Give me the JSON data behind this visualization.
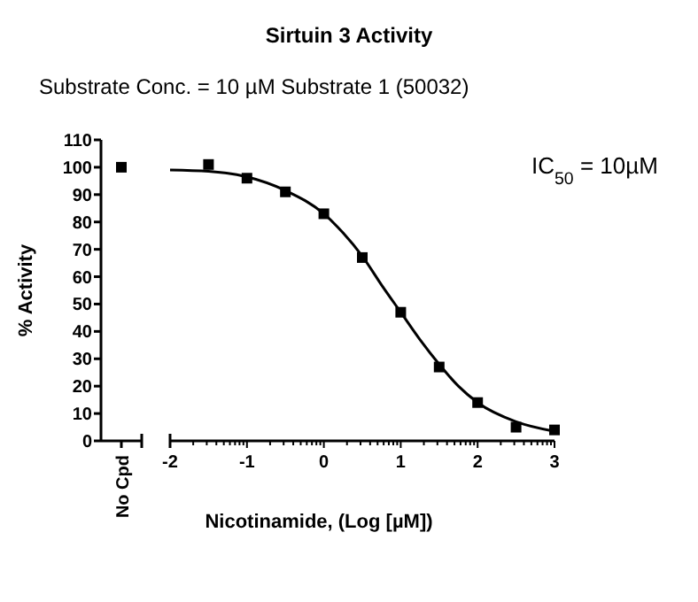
{
  "chart_data": [
    {
      "type": "scatter",
      "ylabel": "% Activity",
      "categories": [
        "No Cpd"
      ],
      "ylim": [
        0,
        110
      ],
      "yticks": [
        0,
        10,
        20,
        30,
        40,
        50,
        60,
        70,
        80,
        90,
        100,
        110
      ],
      "marker": "square",
      "series": [
        {
          "color": "#000000",
          "values": [
            100
          ]
        }
      ]
    },
    {
      "type": "scatter",
      "title": "Sirtuin 3 Activity",
      "subtitle": "Substrate Conc. = 10 µM Substrate 1 (50032)",
      "xlabel": "Nicotinamide, (Log [µM])",
      "annotations": [
        "IC$_{50}$ = 10µM"
      ],
      "xlim": [
        -2,
        3
      ],
      "ylim": [
        0,
        110
      ],
      "tick_labels": "x",
      "marker": "square",
      "xticks": [
        -2,
        {
          "value": -1.699,
          "label": null
        },
        {
          "value": -1.523,
          "label": null
        },
        {
          "value": -1.398,
          "label": null
        },
        {
          "value": -1.301,
          "label": null
        },
        {
          "value": -1.222,
          "label": null
        },
        {
          "value": -1.155,
          "label": null
        },
        {
          "value": -1.097,
          "label": null
        },
        {
          "value": -1.046,
          "label": null
        },
        -1,
        {
          "value": -0.699,
          "label": null
        },
        {
          "value": -0.523,
          "label": null
        },
        {
          "value": -0.398,
          "label": null
        },
        {
          "value": -0.301,
          "label": null
        },
        {
          "value": -0.222,
          "label": null
        },
        {
          "value": -0.155,
          "label": null
        },
        {
          "value": -0.097,
          "label": null
        },
        {
          "value": -0.046,
          "label": null
        },
        0,
        {
          "value": 0.301,
          "label": null
        },
        {
          "value": 0.477,
          "label": null
        },
        {
          "value": 0.602,
          "label": null
        },
        {
          "value": 0.699,
          "label": null
        },
        {
          "value": 0.778,
          "label": null
        },
        {
          "value": 0.845,
          "label": null
        },
        {
          "value": 0.903,
          "label": null
        },
        {
          "value": 0.954,
          "label": null
        },
        1,
        {
          "value": 1.301,
          "label": null
        },
        {
          "value": 1.477,
          "label": null
        },
        {
          "value": 1.602,
          "label": null
        },
        {
          "value": 1.699,
          "label": null
        },
        {
          "value": 1.778,
          "label": null
        },
        {
          "value": 1.845,
          "label": null
        },
        {
          "value": 1.903,
          "label": null
        },
        {
          "value": 1.954,
          "label": null
        },
        2,
        {
          "value": 2.301,
          "label": null
        },
        {
          "value": 2.477,
          "label": null
        },
        {
          "value": 2.602,
          "label": null
        },
        {
          "value": 2.699,
          "label": null
        },
        {
          "value": 2.778,
          "label": null
        },
        {
          "value": 2.845,
          "label": null
        },
        {
          "value": 2.903,
          "label": null
        },
        {
          "value": 2.954,
          "label": null
        },
        3
      ],
      "series": [
        {
          "color": "#000000",
          "x": [
            -1.5,
            -1,
            -0.5,
            0,
            0.5,
            1,
            1.5,
            2,
            2.5,
            3
          ],
          "values": [
            101,
            96,
            91,
            83,
            67,
            47,
            27,
            14,
            5,
            4
          ]
        },
        {
          "type": "line",
          "color": "#000000",
          "marker": "none",
          "x": [
            -2,
            -1.5,
            -1,
            -0.5,
            0,
            0.25,
            0.5,
            0.75,
            1,
            1.25,
            1.5,
            1.75,
            2,
            2.5,
            3
          ],
          "values": [
            99,
            98.5,
            96.5,
            91.5,
            83,
            76,
            67.5,
            57,
            47,
            37,
            28,
            20,
            14,
            7,
            3.5
          ]
        }
      ]
    }
  ]
}
